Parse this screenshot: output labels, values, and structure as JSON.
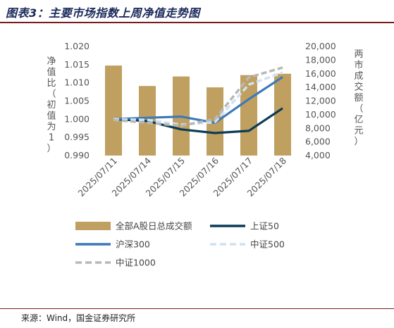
{
  "title": "图表3：主要市场指数上周净值走势图",
  "source": "来源：Wind，国金证券研究所",
  "chart_data": {
    "type": "bar+line",
    "categories": [
      "2025/07/11",
      "2025/07/14",
      "2025/07/15",
      "2025/07/16",
      "2025/07/17",
      "2025/07/18"
    ],
    "y_left": {
      "label": "净值比（初值为1）",
      "range": [
        0.99,
        1.02
      ],
      "ticks": [
        "0.990",
        "0.995",
        "1.000",
        "1.005",
        "1.010",
        "1.015",
        "1.020"
      ]
    },
    "y_right": {
      "label": "两市成交额（亿元）",
      "range": [
        4000,
        20000
      ],
      "ticks": [
        "4,000",
        "6,000",
        "8,000",
        "10,000",
        "12,000",
        "14,000",
        "16,000",
        "18,000",
        "20,000"
      ]
    },
    "bars": {
      "name": "全部A股日总成交额",
      "axis": "right",
      "color": "#c0a060",
      "values": [
        17200,
        14200,
        15600,
        14000,
        15800,
        16000
      ]
    },
    "series": [
      {
        "name": "上证50",
        "axis": "left",
        "color": "#0d3b57",
        "style": "solid",
        "values": [
          1.0,
          0.9995,
          0.9972,
          0.9962,
          0.9968,
          1.003
        ]
      },
      {
        "name": "沪深300",
        "axis": "left",
        "color": "#3d7ab8",
        "style": "solid",
        "values": [
          1.0,
          1.0004,
          1.0007,
          0.999,
          1.0055,
          1.0116
        ]
      },
      {
        "name": "中证500",
        "axis": "left",
        "color": "#cfe2f3",
        "style": "dashed",
        "values": [
          1.0,
          0.9998,
          0.9985,
          0.9992,
          1.0095,
          1.0128
        ]
      },
      {
        "name": "中证1000",
        "axis": "left",
        "color": "#b8b8b8",
        "style": "dashed",
        "values": [
          0.9998,
          0.999,
          0.9982,
          1.0,
          1.0115,
          1.0142
        ]
      }
    ]
  }
}
